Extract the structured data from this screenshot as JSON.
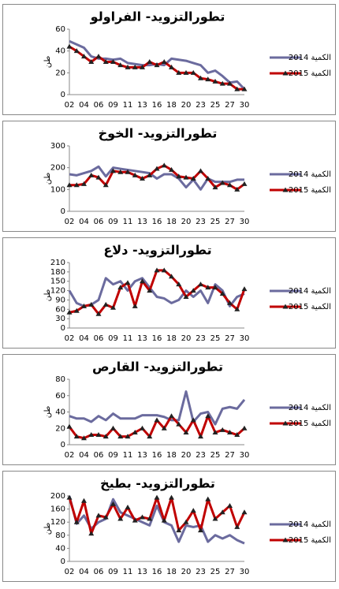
{
  "chart_data": [
    {
      "type": "line",
      "title": "تطورالتزويد- الفراولو",
      "y_label": "طن",
      "categories": [
        "02",
        null,
        "04",
        null,
        "06",
        null,
        "09",
        null,
        "11",
        null,
        "13",
        null,
        "16",
        null,
        "18",
        null,
        "20",
        null,
        "23",
        null,
        "25",
        null,
        "27",
        null,
        "30"
      ],
      "series": [
        {
          "name": "الكمية 2014",
          "color": "#6b6b9e",
          "values": [
            49,
            46,
            43,
            35,
            33,
            33,
            32,
            33,
            29,
            28,
            27,
            27,
            28,
            27,
            33,
            32,
            31,
            29,
            27,
            20,
            22,
            17,
            11,
            12,
            5
          ]
        },
        {
          "name": "الكمية 2015",
          "color": "#c00000",
          "values": [
            44,
            40,
            35,
            30,
            35,
            30,
            30,
            27,
            25,
            25,
            25,
            30,
            27,
            30,
            25,
            20,
            20,
            20,
            15,
            14,
            12,
            10,
            10,
            5,
            5
          ]
        }
      ],
      "ylim": [
        0,
        60
      ],
      "yticks": [
        0,
        20,
        40,
        60
      ],
      "grid": false,
      "legend": "right"
    },
    {
      "type": "line",
      "title": "تطورالتزويد- الخوخ",
      "y_label": "طن",
      "categories": [
        "02",
        null,
        "04",
        null,
        "06",
        null,
        "09",
        null,
        "11",
        null,
        "13",
        null,
        "16",
        null,
        "18",
        null,
        "20",
        null,
        "23",
        null,
        "25",
        null,
        "27",
        null,
        "30"
      ],
      "series": [
        {
          "name": "الكمية 2014",
          "color": "#6b6b9e",
          "values": [
            170,
            165,
            175,
            185,
            205,
            160,
            200,
            195,
            190,
            185,
            180,
            175,
            150,
            170,
            170,
            150,
            110,
            145,
            100,
            150,
            135,
            135,
            135,
            145,
            145
          ]
        },
        {
          "name": "الكمية 2015",
          "color": "#c00000",
          "values": [
            120,
            120,
            125,
            165,
            155,
            120,
            185,
            180,
            180,
            165,
            150,
            165,
            195,
            210,
            190,
            160,
            155,
            150,
            185,
            150,
            110,
            130,
            120,
            100,
            125
          ]
        }
      ],
      "ylim": [
        0,
        300
      ],
      "yticks": [
        0,
        100,
        200,
        300
      ],
      "grid": false,
      "legend": "right"
    },
    {
      "type": "line",
      "title": "تطورالتزويد- دلاع",
      "y_label": "طن",
      "categories": [
        "02",
        null,
        "04",
        null,
        "06",
        null,
        "09",
        null,
        "11",
        null,
        "13",
        null,
        "16",
        null,
        "18",
        null,
        "20",
        null,
        "23",
        null,
        "25",
        null,
        "27",
        null,
        "30"
      ],
      "series": [
        {
          "name": "الكمية 2014",
          "color": "#6b6b9e",
          "values": [
            120,
            80,
            70,
            75,
            90,
            160,
            140,
            150,
            120,
            150,
            160,
            130,
            100,
            95,
            80,
            90,
            120,
            100,
            120,
            80,
            140,
            120,
            70,
            100,
            110
          ]
        },
        {
          "name": "الكمية 2015",
          "color": "#c00000",
          "values": [
            50,
            55,
            70,
            75,
            45,
            75,
            65,
            130,
            145,
            70,
            150,
            120,
            185,
            185,
            165,
            140,
            100,
            120,
            140,
            130,
            130,
            110,
            80,
            60,
            125
          ]
        }
      ],
      "ylim": [
        0,
        210
      ],
      "yticks": [
        0,
        30,
        60,
        90,
        120,
        150,
        180,
        210
      ],
      "grid": false,
      "legend": "right"
    },
    {
      "type": "line",
      "title": "تطورالتزويد- القارص",
      "y_label": "طن",
      "categories": [
        "02",
        null,
        "04",
        null,
        "06",
        null,
        "09",
        null,
        "11",
        null,
        "13",
        null,
        "16",
        null,
        "18",
        null,
        "20",
        null,
        "23",
        null,
        "25",
        null,
        "27",
        null,
        "30"
      ],
      "series": [
        {
          "name": "الكمية 2014",
          "color": "#6b6b9e",
          "values": [
            35,
            32,
            32,
            28,
            35,
            30,
            38,
            32,
            32,
            32,
            36,
            36,
            36,
            34,
            30,
            30,
            65,
            28,
            38,
            40,
            25,
            44,
            46,
            44,
            55
          ]
        },
        {
          "name": "الكمية 2015",
          "color": "#c00000",
          "values": [
            22,
            10,
            8,
            12,
            12,
            10,
            20,
            10,
            10,
            15,
            20,
            10,
            30,
            20,
            35,
            25,
            15,
            30,
            10,
            35,
            15,
            18,
            15,
            12,
            20
          ]
        }
      ],
      "ylim": [
        0,
        80
      ],
      "yticks": [
        0,
        20,
        40,
        60,
        80
      ],
      "grid": false,
      "legend": "right"
    },
    {
      "type": "line",
      "title": "تطورالتزويد- بطيخ",
      "y_label": "طن",
      "categories": [
        "02",
        null,
        "04",
        null,
        "06",
        null,
        "09",
        null,
        "11",
        null,
        "13",
        null,
        "16",
        null,
        "18",
        null,
        "20",
        null,
        "23",
        null,
        "25",
        null,
        "27",
        null,
        "30"
      ],
      "series": [
        {
          "name": "الكمية 2014",
          "color": "#6b6b9e",
          "values": [
            200,
            115,
            140,
            100,
            120,
            130,
            190,
            150,
            140,
            130,
            120,
            110,
            170,
            120,
            110,
            60,
            110,
            105,
            110,
            60,
            80,
            70,
            80,
            65,
            55
          ]
        },
        {
          "name": "الكمية 2015",
          "color": "#c00000",
          "values": [
            195,
            120,
            185,
            85,
            140,
            135,
            175,
            130,
            165,
            125,
            135,
            130,
            195,
            125,
            195,
            95,
            120,
            155,
            95,
            190,
            130,
            150,
            170,
            105,
            150
          ]
        }
      ],
      "ylim": [
        0,
        200
      ],
      "yticks": [
        0,
        40,
        80,
        120,
        160,
        200
      ],
      "grid": false,
      "legend": "right"
    }
  ]
}
